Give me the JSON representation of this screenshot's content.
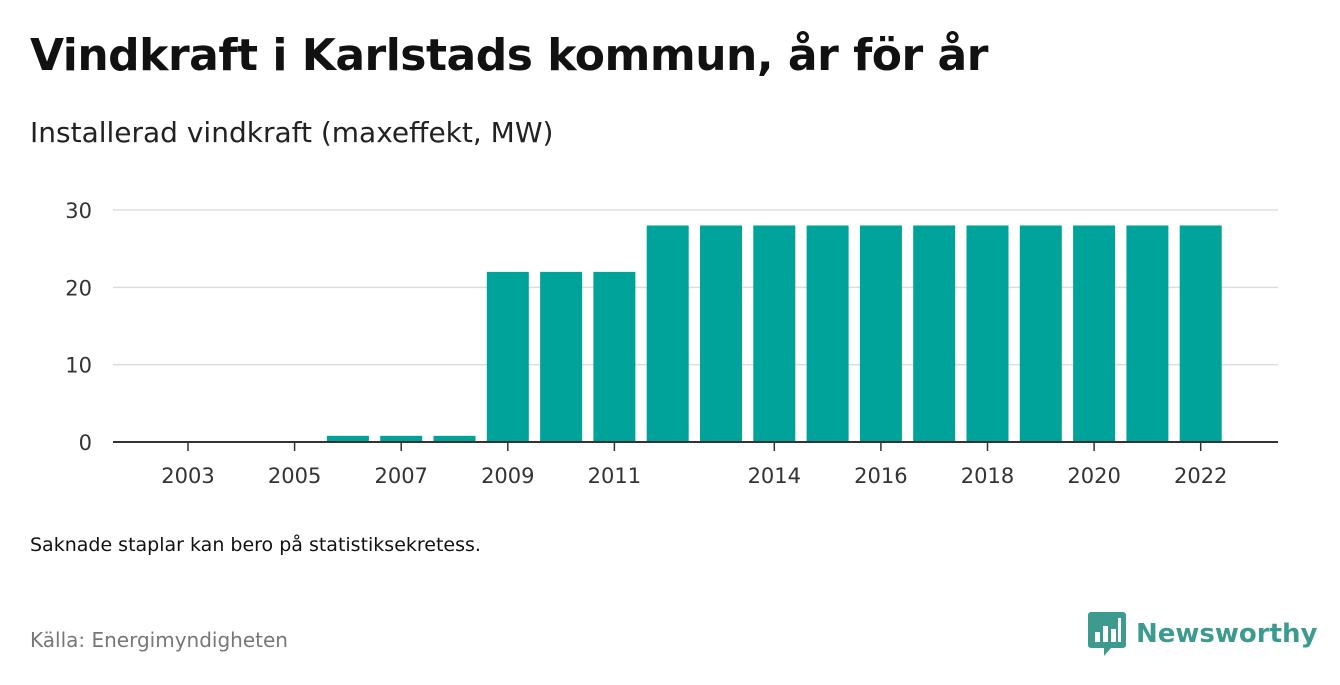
{
  "title": "Vindkraft i Karlstads kommun, år för år",
  "subtitle": "Installerad vindkraft (maxeffekt, MW)",
  "note": "Saknade staplar kan bero på statistiksekretess.",
  "source": "Källa: Energimyndigheten",
  "brand": {
    "name": "Newsworthy",
    "icon": "newsworthy-logo-icon",
    "color": "#3c9a8e"
  },
  "colors": {
    "bar": "#00a39a",
    "grid": "#dddddd",
    "baseline": "#333333"
  },
  "chart_data": {
    "type": "bar",
    "categories": [
      "2003",
      "2004",
      "2005",
      "2006",
      "2007",
      "2008",
      "2009",
      "2010",
      "2011",
      "2012",
      "2013",
      "2014",
      "2015",
      "2016",
      "2017",
      "2018",
      "2019",
      "2020",
      "2021",
      "2022"
    ],
    "values": [
      0,
      0,
      0,
      0.8,
      0.8,
      0.8,
      22,
      22,
      22,
      28,
      28,
      28,
      28,
      28,
      28,
      28,
      28,
      28,
      28,
      28
    ],
    "x_tick_labels": [
      "2003",
      "2005",
      "2007",
      "2009",
      "2011",
      "2014",
      "2016",
      "2018",
      "2020",
      "2022"
    ],
    "y_ticks": [
      0,
      10,
      20,
      30
    ],
    "ylim": [
      0,
      30
    ],
    "grid": true,
    "legend": "none",
    "xlabel": "",
    "ylabel": ""
  }
}
